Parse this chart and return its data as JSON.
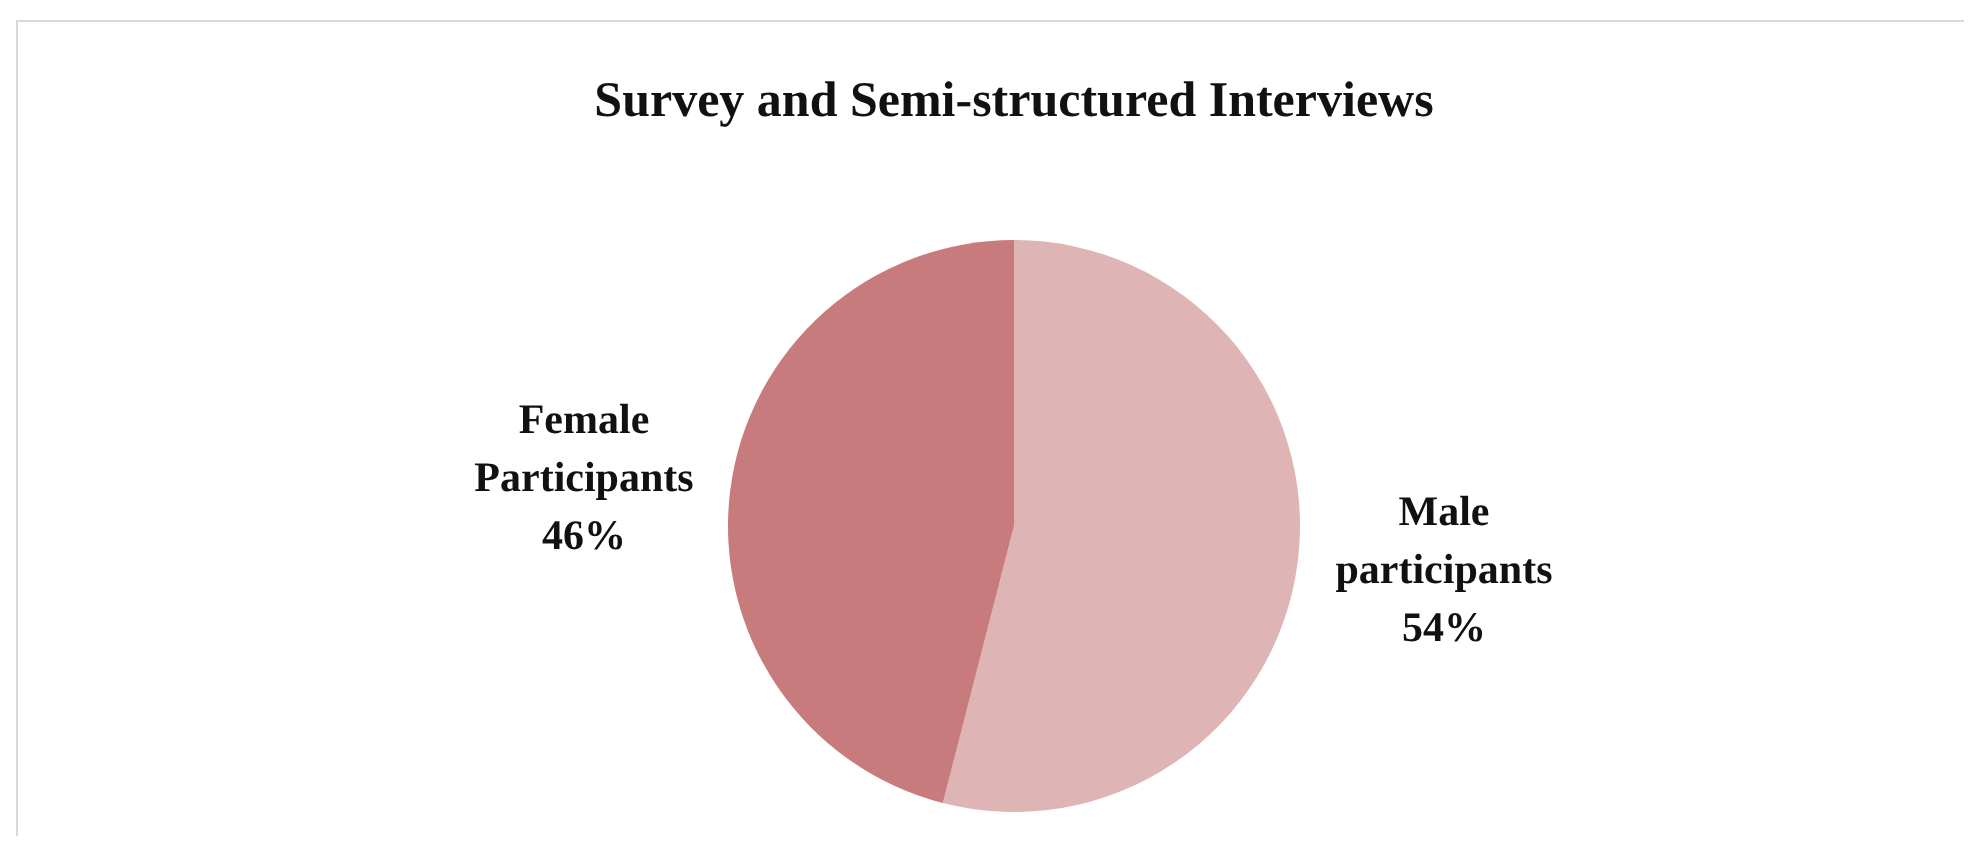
{
  "chart_data": {
    "type": "pie",
    "title": "Survey and Semi-structured Interviews",
    "categories": [
      "Male participants",
      "Female Participants"
    ],
    "values": [
      54,
      46
    ],
    "colors": [
      "#deb4b5",
      "#c87b7c"
    ],
    "value_labels": [
      "54%",
      "46%"
    ]
  }
}
